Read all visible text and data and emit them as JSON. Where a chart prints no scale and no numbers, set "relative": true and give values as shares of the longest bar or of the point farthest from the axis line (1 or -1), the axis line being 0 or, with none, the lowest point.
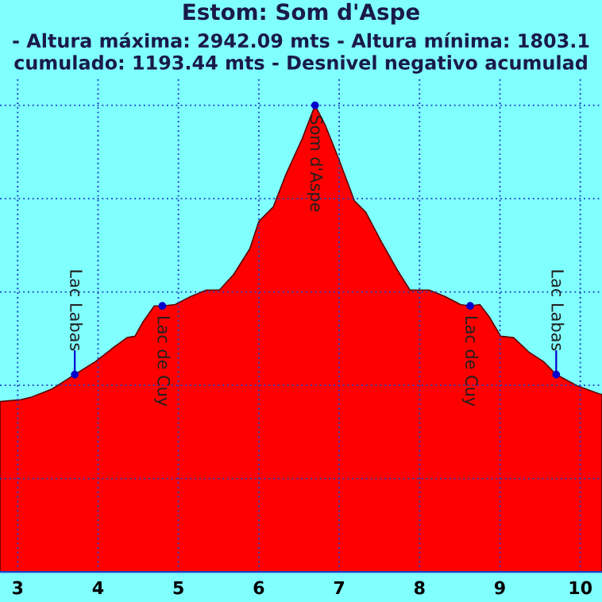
{
  "chart_data": {
    "type": "area",
    "relative": true,
    "title": "Estom: Som d'Aspe",
    "subtitle": "- Altura máxima: 2942.09 mts - Altura mínima: 1803.1\ncumulado: 1193.44 mts - Desnivel negativo acumulad",
    "x": [
      2.78,
      3.04,
      3.18,
      3.43,
      3.71,
      3.97,
      4.17,
      4.36,
      4.46,
      4.56,
      4.7,
      4.8,
      4.96,
      5.15,
      5.35,
      5.51,
      5.69,
      5.89,
      6.0,
      6.18,
      6.34,
      6.54,
      6.7,
      6.83,
      6.99,
      7.19,
      7.33,
      7.53,
      7.72,
      7.88,
      8.12,
      8.32,
      8.51,
      8.63,
      8.75,
      8.87,
      9.01,
      9.17,
      9.36,
      9.54,
      9.7,
      9.96,
      10.23,
      10.27
    ],
    "series": [
      {
        "color": "#ff0000",
        "values": [
          0.365,
          0.369,
          0.375,
          0.392,
          0.423,
          0.451,
          0.478,
          0.502,
          0.505,
          0.536,
          0.57,
          0.57,
          0.573,
          0.59,
          0.604,
          0.604,
          0.638,
          0.693,
          0.751,
          0.782,
          0.853,
          0.928,
          1,
          0.956,
          0.887,
          0.795,
          0.771,
          0.706,
          0.648,
          0.604,
          0.604,
          0.59,
          0.573,
          0.57,
          0.573,
          0.546,
          0.505,
          0.502,
          0.471,
          0.451,
          0.423,
          0.399,
          0.382,
          0.38
        ]
      }
    ],
    "xlim": [
      2.78,
      10.27
    ],
    "xticks": [
      3,
      4,
      5,
      6,
      7,
      8,
      9,
      10
    ],
    "annotations": [
      {
        "text": "Lac Labas",
        "x": 3.71,
        "y": 0.423
      },
      {
        "text": "Lac de Cuy",
        "x": 4.8,
        "y": 0.57
      },
      {
        "text": "Som d'Aspe",
        "x": 6.7,
        "y": 1
      },
      {
        "text": "Lac de Cuy",
        "x": 8.63,
        "y": 0.57
      },
      {
        "text": "Lac Labas",
        "x": 9.7,
        "y": 0.423
      }
    ],
    "grid": true,
    "tick_labels": "x"
  }
}
